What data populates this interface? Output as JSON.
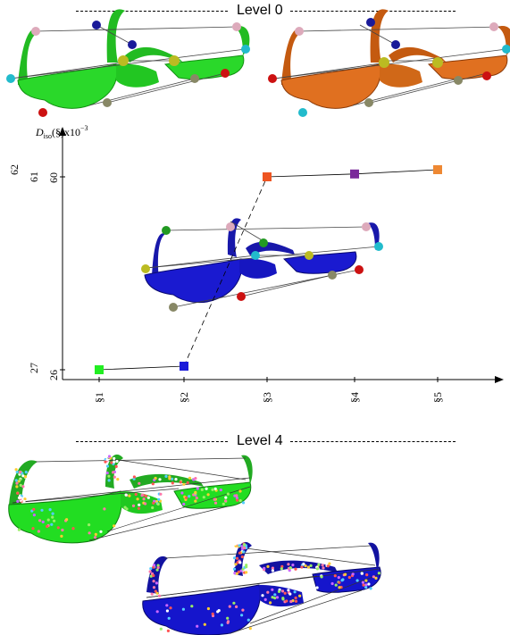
{
  "level_top": "Level 0",
  "level_bottom": "Level 4",
  "colors": {
    "green": "#22cc22",
    "orange": "#e07020",
    "blue": "#1a1acc",
    "level4_green": "#22dd22",
    "level4_blue": "#1515bb"
  },
  "chart_data": {
    "type": "line",
    "ylabel_prefix": "D",
    "ylabel_sub": "iso",
    "ylabel_suffix": "(§)x10",
    "ylabel_exp": "−3",
    "left_tick_labels": [
      "62",
      "27"
    ],
    "y_tick_labels": [
      "61",
      "60",
      "26"
    ],
    "categories": [
      "§1",
      "§2",
      "§3",
      "§4",
      "§5"
    ],
    "series": [
      {
        "values": [
          26,
          26.05,
          60,
          60.1,
          60.25
        ],
        "colors": [
          "#22ee22",
          "#1a1ad9",
          "#ee5522",
          "#7a2a9a",
          "#ee8833"
        ]
      }
    ],
    "discontinuous_axis": true
  }
}
